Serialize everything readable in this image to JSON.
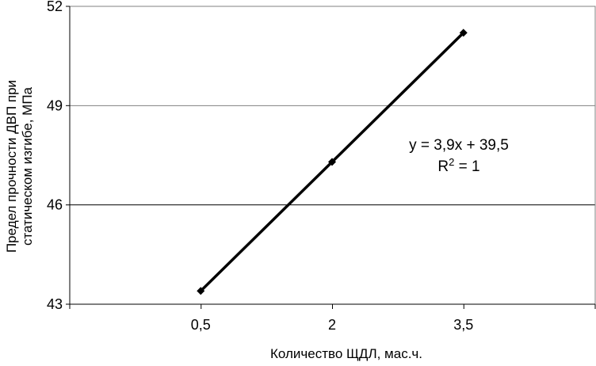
{
  "chart_data": {
    "type": "line",
    "title": "",
    "xlabel": "Количество ЩДЛ,  мас.ч.",
    "ylabel_line1": "Предел прочности ДВП при",
    "ylabel_line2": "статическом изгибе, МПа",
    "categories": [
      "0,5",
      "2",
      "3,5"
    ],
    "series": [
      {
        "values": [
          43.4,
          47.3,
          51.2
        ]
      }
    ],
    "ylim": [
      43,
      52
    ],
    "yticks": [
      43,
      46,
      49,
      52
    ],
    "ytick_labels": [
      "43",
      "46",
      "49",
      "52"
    ],
    "grid": "horizontal",
    "annotation": {
      "equation": "y = 3,9x + 39,5",
      "r2_prefix": "R",
      "r2_sup": "2",
      "r2_suffix": " = 1"
    },
    "colors": {
      "line": "#000000",
      "grid": "#808080",
      "axis": "#808080"
    }
  }
}
